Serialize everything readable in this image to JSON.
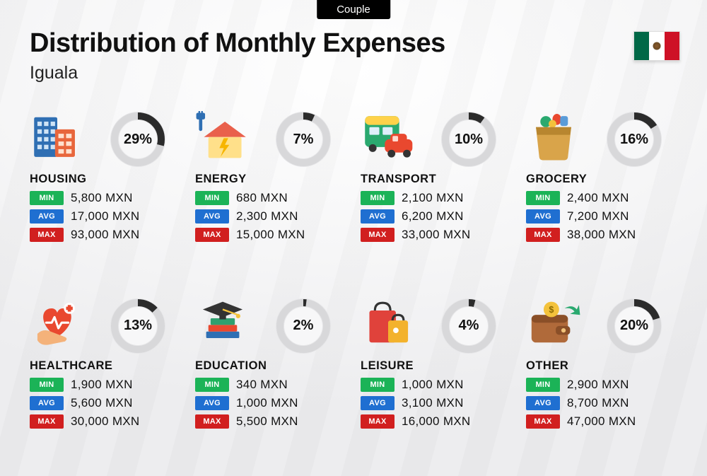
{
  "badge": "Couple",
  "title": "Distribution of Monthly Expenses",
  "subtitle": "Iguala",
  "currency": "MXN",
  "flag": {
    "stripes": [
      "#006847",
      "#ffffff",
      "#ce1126"
    ]
  },
  "labels": {
    "min": "MIN",
    "avg": "AVG",
    "max": "MAX"
  },
  "colors": {
    "pill_min": "#1bb357",
    "pill_avg": "#1f6fd1",
    "pill_max": "#d11f1f",
    "donut_bg": "#e6e6e8",
    "donut_track": "#d8d8da",
    "donut_fg": "#2b2b2b",
    "text": "#111111"
  },
  "donut": {
    "radius": 33,
    "thickness": 10,
    "fontsize_pct": 20
  },
  "categories": [
    {
      "key": "housing",
      "name": "HOUSING",
      "pct": 29,
      "min": "5,800",
      "avg": "17,000",
      "max": "93,000",
      "icon_colors": {
        "bldg1": "#2f6fb3",
        "bldg2": "#e8663c",
        "windows": "#cfe3f5"
      }
    },
    {
      "key": "energy",
      "name": "ENERGY",
      "pct": 7,
      "min": "680",
      "avg": "2,300",
      "max": "15,000",
      "icon_colors": {
        "house": "#ffe08a",
        "roof": "#e9604c",
        "bolt": "#f7b500",
        "plug": "#2f6fb3"
      }
    },
    {
      "key": "transport",
      "name": "TRANSPORT",
      "pct": 10,
      "min": "2,100",
      "avg": "6,200",
      "max": "33,000",
      "icon_colors": {
        "bus": "#2aa96f",
        "bus_top": "#ffd24a",
        "car": "#e9482f",
        "wheel": "#333333"
      }
    },
    {
      "key": "grocery",
      "name": "GROCERY",
      "pct": 16,
      "min": "2,400",
      "avg": "7,200",
      "max": "38,000",
      "icon_colors": {
        "bag": "#d9a44a",
        "bag_dark": "#b8862f",
        "veg1": "#2aa96f",
        "veg2": "#e9482f",
        "veg3": "#5a9bd8",
        "veg4": "#f3c23c"
      }
    },
    {
      "key": "healthcare",
      "name": "HEALTHCARE",
      "pct": 13,
      "min": "1,900",
      "avg": "5,600",
      "max": "30,000",
      "icon_colors": {
        "heart": "#e9482f",
        "hand": "#f4b27a",
        "pulse": "#ffffff",
        "plus_bg": "#ffffff",
        "plus": "#e9482f"
      }
    },
    {
      "key": "education",
      "name": "EDUCATION",
      "pct": 2,
      "min": "340",
      "avg": "1,000",
      "max": "5,500",
      "icon_colors": {
        "cap": "#333333",
        "book1": "#2fa06f",
        "book2": "#e9482f",
        "book3": "#2f6fb3",
        "tassel": "#f3c23c"
      }
    },
    {
      "key": "leisure",
      "name": "LEISURE",
      "pct": 4,
      "min": "1,000",
      "avg": "3,100",
      "max": "16,000",
      "icon_colors": {
        "bag_big": "#e0423b",
        "bag_small": "#f3b22c",
        "handle": "#333333"
      }
    },
    {
      "key": "other",
      "name": "OTHER",
      "pct": 20,
      "min": "2,900",
      "avg": "8,700",
      "max": "47,000",
      "icon_colors": {
        "wallet": "#b06a3a",
        "wallet_dark": "#8a4f28",
        "coin": "#f3c23c",
        "coin_sign": "#8a6a00",
        "arrow": "#2aa96f"
      }
    }
  ]
}
